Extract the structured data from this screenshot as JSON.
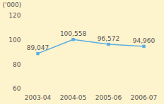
{
  "chart_data": {
    "type": "line",
    "y_label": "('000)",
    "categories": [
      "2003-04",
      "2004-05",
      "2005-06",
      "2006-07"
    ],
    "values": [
      89.047,
      100.558,
      96.572,
      94.96
    ],
    "value_labels": [
      "89,047",
      "100,558",
      "96,572",
      "94,960"
    ],
    "data_labels": true,
    "color": "#5aaee3",
    "marker": "square",
    "ylim": [
      60,
      120
    ],
    "yticks": [
      60,
      80,
      100,
      120
    ],
    "grid": false
  }
}
